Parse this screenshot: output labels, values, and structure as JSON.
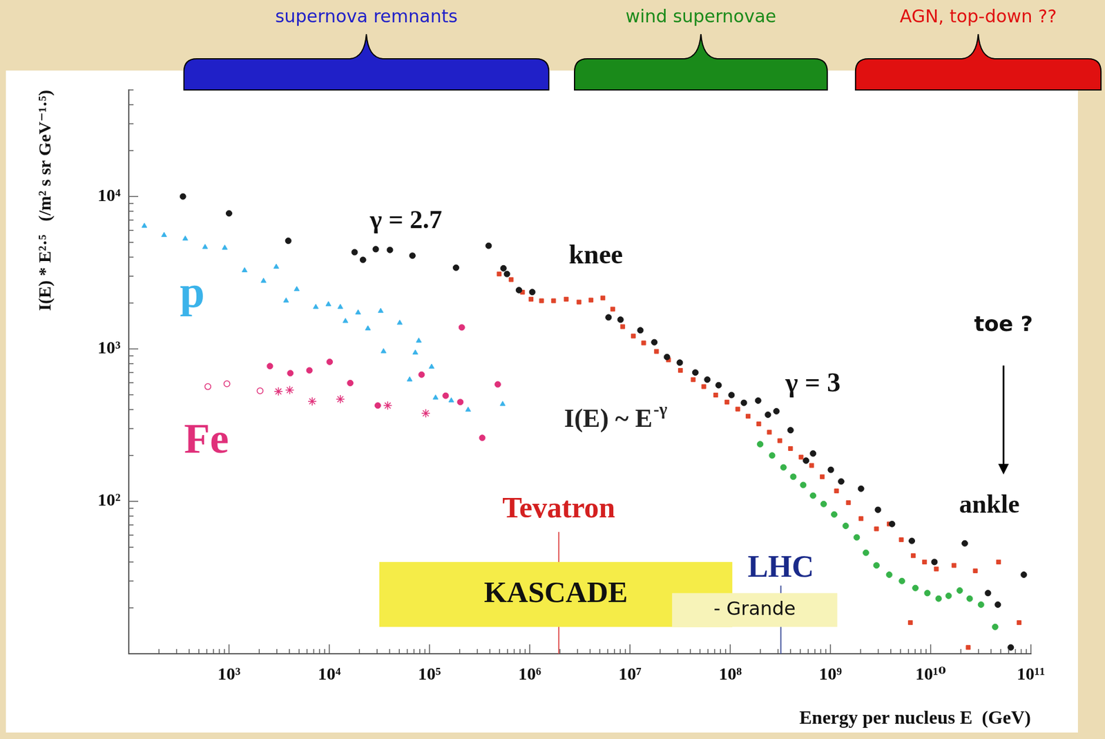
{
  "chart_data": {
    "type": "scatter",
    "x_label": "Energy per nucleus E  (GeV)",
    "y_label": "I(E) * E²·⁵   (/m² s sr GeV⁻¹·⁵)",
    "log": true,
    "grid": false,
    "xlim": [
      100,
      100000000000.0
    ],
    "xticks": [
      {
        "value": 1000.0,
        "label": "10³"
      },
      {
        "value": 10000.0,
        "label": "10⁴"
      },
      {
        "value": 100000.0,
        "label": "10⁵"
      },
      {
        "value": 1000000.0,
        "label": "10⁶"
      },
      {
        "value": 10000000.0,
        "label": "10⁷"
      },
      {
        "value": 100000000.0,
        "label": "10⁸"
      },
      {
        "value": 1000000000.0,
        "label": "10⁹"
      },
      {
        "value": 10000000000.0,
        "label": "10¹⁰"
      },
      {
        "value": 100000000000.0,
        "label": "10¹¹"
      }
    ],
    "ylim": [
      10,
      50000
    ],
    "yticks": [
      {
        "value": 100,
        "label": "10²"
      },
      {
        "value": 1000,
        "label": "10³"
      },
      {
        "value": 10000,
        "label": "10⁴"
      }
    ],
    "series": [
      {
        "color": "#3bb3ea",
        "marker": "triangle",
        "x": [
          143,
          225,
          366,
          577,
          907,
          1430,
          2210,
          2960,
          3710,
          4740,
          7340,
          9810,
          12900,
          14500,
          19400,
          24300,
          32600,
          34800,
          50500,
          63400,
          72200,
          78200,
          105000,
          115000,
          165000,
          243000,
          537000
        ],
        "values": [
          6400,
          5570,
          5280,
          4650,
          4600,
          3270,
          2790,
          3450,
          2070,
          2460,
          1880,
          1960,
          1880,
          1520,
          1730,
          1360,
          1770,
          963,
          1480,
          629,
          944,
          1130,
          762,
          478,
          458,
          398,
          434
        ]
      },
      {
        "color": "#e0307a",
        "marker": "circle",
        "x": [
          2560,
          4090,
          6340,
          10100,
          16200,
          30500,
          83400,
          210000,
          145000,
          203000,
          336000,
          480000
        ],
        "values": [
          771,
          693,
          723,
          822,
          597,
          425,
          678,
          1384,
          493,
          448,
          261,
          585
        ]
      },
      {
        "color": "#e0307a",
        "marker": "open_circle",
        "x": [
          615,
          953,
          2040
        ],
        "values": [
          566,
          591,
          531
        ]
      },
      {
        "color": "#e0307a",
        "marker": "star",
        "x": [
          3110,
          4030,
          6760,
          12900,
          38300,
          91800
        ],
        "values": [
          526,
          537,
          453,
          468,
          425,
          378
        ]
      },
      {
        "color": "#1a1a1a",
        "marker": "circle",
        "x": [
          347,
          1000,
          3900,
          17900,
          21700,
          29100,
          40300,
          67600,
          184000,
          389000,
          547000,
          593000,
          781000,
          1060000,
          6110000,
          8050000,
          12700000.0,
          17500000.0,
          23400000.0,
          31400000.0,
          44900000.0,
          59100000.0,
          76600000.0,
          103000000.0,
          137000000.0,
          190000000.0,
          238000000.0,
          289000000.0,
          400000000.0,
          571000000.0,
          671000000.0,
          1010000000.0,
          1280000000.0,
          2020000000.0,
          2980000000.0,
          4120000000.0,
          6490000000.0,
          10900000000.0,
          21900000000.0,
          37300000000.0,
          46800000000.0,
          63000000000.0,
          85000000000.0
        ],
        "values": [
          10000,
          7750,
          5120,
          4310,
          3840,
          4510,
          4460,
          4090,
          3410,
          4750,
          3380,
          3100,
          2430,
          2360,
          1610,
          1556,
          1325,
          1106,
          885,
          813,
          700,
          629,
          578,
          498,
          443,
          458,
          370,
          390,
          293,
          185,
          206,
          161,
          135,
          121,
          88,
          71,
          55,
          40,
          53,
          25,
          21,
          11,
          33
        ]
      },
      {
        "color": "#e0452a",
        "marker": "square",
        "x": [
          495000.0,
          653000.0,
          847000.0,
          1030000.0,
          1310000.0,
          1730000.0,
          2310000.0,
          3100000.0,
          4080000.0,
          5370000.0,
          6730000.0,
          8450000.0,
          10800000.0,
          13700000.0,
          18400000.0,
          24200000.0,
          31900000.0,
          42700000.0,
          54500000.0,
          71800000.0,
          92900000.0,
          119000000.0,
          151000000.0,
          193000000.0,
          246000000.0,
          313000000.0,
          400000000.0,
          510000000.0,
          650000000.0,
          829000000.0,
          1150000000.0,
          1510000000.0,
          2020000000.0,
          2880000000.0,
          3860000000.0,
          5090000000.0,
          6700000000.0,
          8690000000.0,
          11400000000.0,
          17100000000.0,
          27900000000.0,
          47600000000.0,
          76200000000.0,
          6280000000.0,
          23700000000.0
        ],
        "values": [
          3100,
          2850,
          2355,
          2120,
          2070,
          2070,
          2120,
          2030,
          2090,
          2160,
          1825,
          1400,
          1215,
          1094,
          963,
          847,
          723,
          629,
          566,
          498,
          448,
          403,
          362,
          322,
          284,
          250,
          222,
          195,
          172,
          145,
          117,
          98,
          77,
          66,
          71,
          56,
          44,
          40,
          36,
          38,
          35,
          40,
          16,
          16,
          11
        ]
      },
      {
        "color": "#37b34a",
        "marker": "circle",
        "x": [
          199000000.0,
          262000000.0,
          340000000.0,
          426000000.0,
          535000000.0,
          671000000.0,
          856000000.0,
          1090000000.0,
          1420000000.0,
          1830000000.0,
          2260000000.0,
          2880000000.0,
          3860000000.0,
          5170000000.0,
          7040000000.0,
          9270000000.0,
          12000000000.0,
          15100000000.0,
          19500000000.0,
          24500000000.0,
          31800000000.0,
          44000000000.0
        ],
        "values": [
          237,
          200,
          167,
          145,
          128,
          109,
          96,
          82,
          69,
          58,
          46,
          38,
          33,
          30,
          27,
          25,
          23,
          24,
          26,
          23,
          21,
          15
        ]
      }
    ],
    "vlines": [
      {
        "x": 1950000.0,
        "y": [
          10,
          63
        ],
        "color": "#e05050"
      },
      {
        "x": 320000000.0,
        "y": [
          10,
          28
        ],
        "color": "#4a5aa0"
      }
    ],
    "bands": [
      {
        "text": "KASCADE",
        "x": [
          31600,
          105000000.0
        ],
        "y": [
          15,
          40
        ],
        "color": "#f5ec48"
      },
      {
        "text": "- Grande",
        "x": [
          26300000.0,
          1170000000.0
        ],
        "y": [
          15,
          25
        ],
        "color": "#f7f3b8"
      }
    ],
    "annotations": [
      {
        "text": "γ = 2.7",
        "x": 58300,
        "y": 6890,
        "color": "#111111"
      },
      {
        "text": "knee",
        "x": 4570000.0,
        "y": 4050,
        "color": "#111111"
      },
      {
        "text": "I(E) ~ E",
        "superscript": "-γ",
        "x": 7200000.0,
        "y": 340,
        "color": "#222222"
      },
      {
        "text": "γ = 3",
        "x": 670000000.0,
        "y": 585,
        "color": "#111111"
      },
      {
        "text": "toe ?",
        "x": 53300000000.0,
        "y": 1430,
        "color": "#111111",
        "arrow": [
          778,
          150
        ]
      },
      {
        "text": "ankle",
        "x": 38500000000.0,
        "y": 93,
        "color": "#111111"
      },
      {
        "text": "Tevatron",
        "x": 1950000.0,
        "y": 88,
        "color": "#d42020"
      },
      {
        "text": "LHC",
        "x": 320000000.0,
        "y": 36,
        "color": "#1a2a8a"
      },
      {
        "text": "p",
        "x": 430,
        "y": 2250,
        "color": "#3bb3ea"
      },
      {
        "text": "Fe",
        "x": 595,
        "y": 247,
        "color": "#e0307a"
      }
    ],
    "brackets": [
      {
        "text": "supernova remnants",
        "x": [
          355,
          1550000.0
        ],
        "color": "#2020c8"
      },
      {
        "text": "wind supernovae",
        "x": [
          2800000.0,
          930000000.0
        ],
        "color": "#1a8a1a"
      },
      {
        "text": "AGN, top-down ??",
        "x": [
          1780000000.0,
          500000000000.0
        ],
        "color": "#e01010"
      }
    ]
  }
}
